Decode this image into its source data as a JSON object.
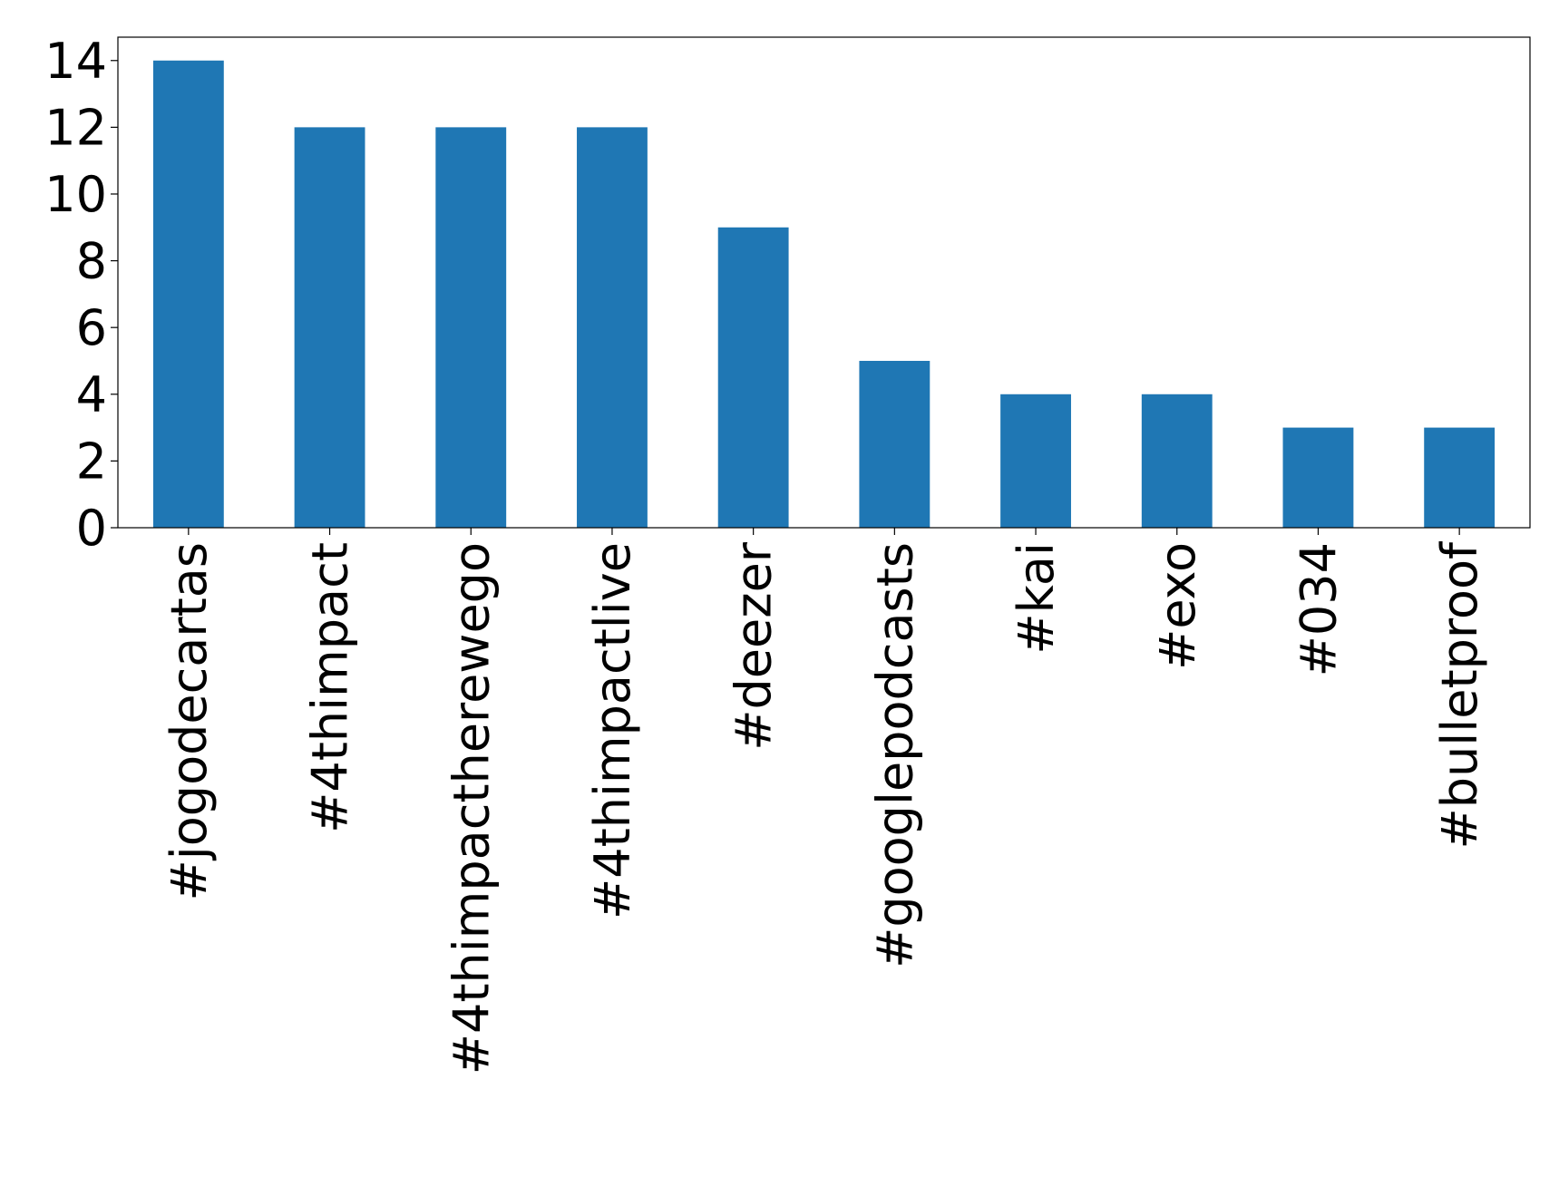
{
  "chart_data": {
    "type": "bar",
    "categories": [
      "#jogodecartas",
      "#4thimpact",
      "#4thimpactherewego",
      "#4thimpactlive",
      "#deezer",
      "#googlepodcasts",
      "#kai",
      "#exo",
      "#034",
      "#bulletproof"
    ],
    "values": [
      14,
      12,
      12,
      12,
      9,
      5,
      4,
      4,
      3,
      3
    ],
    "color": "#1f77b4",
    "ylim": [
      0,
      14.7
    ],
    "yticks": [
      0,
      2,
      4,
      6,
      8,
      10,
      12,
      14
    ],
    "grid": false
  }
}
